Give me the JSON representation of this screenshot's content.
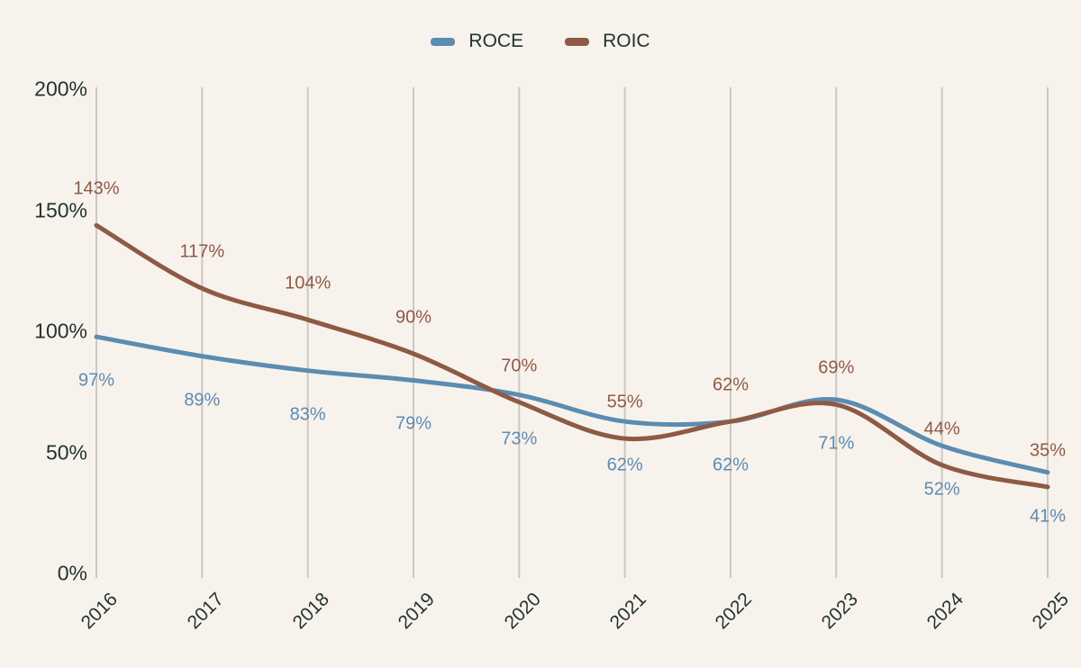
{
  "chart_data": {
    "type": "line",
    "title": "",
    "x": [
      2016,
      2017,
      2018,
      2019,
      2020,
      2021,
      2022,
      2023,
      2024,
      2025
    ],
    "series": [
      {
        "name": "ROCE",
        "color": "#5b8cb2",
        "values": [
          97,
          89,
          83,
          79,
          73,
          62,
          62,
          71,
          52,
          41
        ],
        "labels": [
          "97%",
          "89%",
          "83%",
          "79%",
          "73%",
          "62%",
          "62%",
          "71%",
          "52%",
          "41%"
        ],
        "label_position": "below"
      },
      {
        "name": "ROIC",
        "color": "#8e5a45",
        "values": [
          143,
          117,
          104,
          90,
          70,
          55,
          62,
          69,
          44,
          35
        ],
        "labels": [
          "143%",
          "117%",
          "104%",
          "90%",
          "70%",
          "55%",
          "62%",
          "69%",
          "44%",
          "35%"
        ],
        "label_position": "above"
      }
    ],
    "y_ticks": [
      {
        "label": "0%",
        "value": 0
      },
      {
        "label": "50%",
        "value": 50
      },
      {
        "label": "100%",
        "value": 100
      },
      {
        "label": "150%",
        "value": 150
      },
      {
        "label": "200%",
        "value": 200
      }
    ],
    "ylim": [
      0,
      200
    ],
    "xlabel": "",
    "ylabel": "",
    "grid": "vertical-only",
    "legend_position": "top-center"
  },
  "legend": {
    "items": [
      {
        "label": "ROCE",
        "color": "#5b8cb2"
      },
      {
        "label": "ROIC",
        "color": "#8e5a45"
      }
    ]
  },
  "colors": {
    "background": "#f8f2ed",
    "gridline": "#cdc7c2",
    "axis_text": "#22332e",
    "roce": "#5b8cb2",
    "roic": "#8e5a45"
  }
}
